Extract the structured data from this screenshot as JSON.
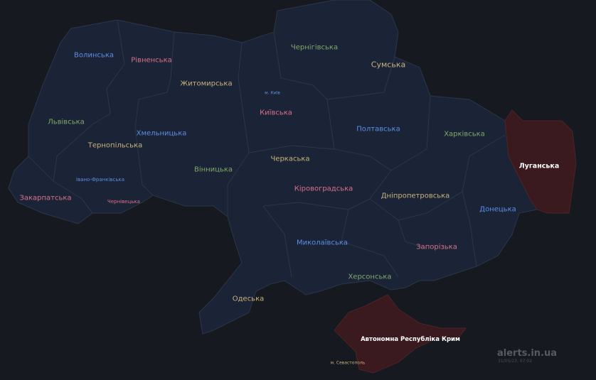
{
  "colors": {
    "background": "#16191f",
    "region_fill": "#1b2436",
    "region_border": "#2c364a",
    "alert_fill": "#3a1a1e",
    "blue": "#5b8ee6",
    "pink": "#d9708a",
    "green": "#7fa86a",
    "tan": "#c8b27a"
  },
  "regions": [
    {
      "name": "Волинська",
      "color": "blue"
    },
    {
      "name": "Рівненська",
      "color": "pink"
    },
    {
      "name": "Житомирська",
      "color": "tan"
    },
    {
      "name": "Чернігівська",
      "color": "green"
    },
    {
      "name": "Сумська",
      "color": "tan"
    },
    {
      "name": "м. Київ",
      "color": "blue"
    },
    {
      "name": "Київська",
      "color": "pink"
    },
    {
      "name": "Львівська",
      "color": "green"
    },
    {
      "name": "Тернопільська",
      "color": "tan"
    },
    {
      "name": "Хмельницька",
      "color": "blue"
    },
    {
      "name": "Вінницька",
      "color": "green"
    },
    {
      "name": "Черкаська",
      "color": "tan"
    },
    {
      "name": "Полтавська",
      "color": "blue"
    },
    {
      "name": "Харківська",
      "color": "green"
    },
    {
      "name": "Луганська",
      "color": "white",
      "alert": true
    },
    {
      "name": "Івано-Франківська",
      "color": "blue"
    },
    {
      "name": "Закарпатська",
      "color": "pink"
    },
    {
      "name": "Чернівецька",
      "color": "pink"
    },
    {
      "name": "Кіровоградська",
      "color": "pink"
    },
    {
      "name": "Дніпропетровська",
      "color": "tan"
    },
    {
      "name": "Донецька",
      "color": "blue"
    },
    {
      "name": "Миколаївська",
      "color": "blue"
    },
    {
      "name": "Запорізька",
      "color": "pink"
    },
    {
      "name": "Херсонська",
      "color": "green"
    },
    {
      "name": "Одеська",
      "color": "tan"
    },
    {
      "name": "Автономна Республіка Крим",
      "color": "white",
      "alert": true
    },
    {
      "name": "м. Севастополь",
      "color": "tan"
    }
  ],
  "watermark": {
    "site": "alerts.in.ua",
    "date": "31/05/23, 07:02"
  }
}
